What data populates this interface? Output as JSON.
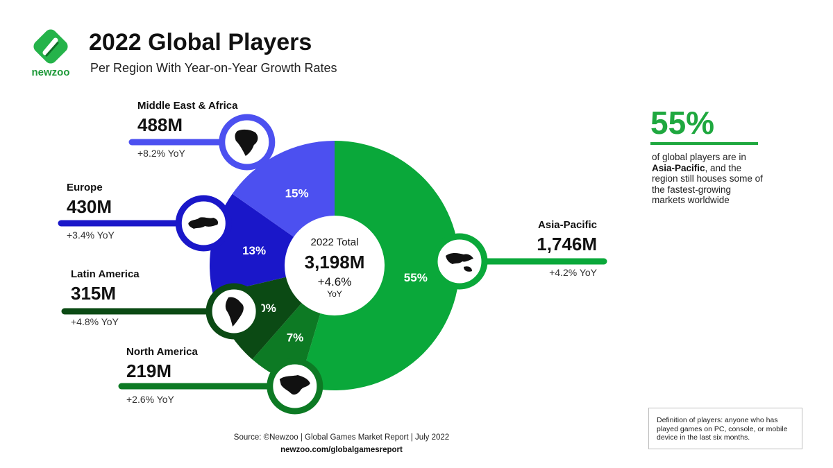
{
  "brand": {
    "name": "newzoo"
  },
  "header": {
    "title": "2022 Global Players",
    "subtitle": "Per Region With Year-on-Year Growth Rates"
  },
  "center": {
    "label": "2022 Total",
    "total": "3,198M",
    "growth": "+4.6%",
    "growth_unit": "YoY"
  },
  "chart_data": {
    "type": "pie",
    "title": "2022 Global Players",
    "subtitle": "Per Region With Year-on-Year Growth Rates",
    "total_label": "2022 Total",
    "total": 3198,
    "total_display": "3,198M",
    "total_yoy": "+4.6% YoY",
    "unit": "M",
    "slices": [
      {
        "name": "Asia-Pacific",
        "value": 1746,
        "value_label": "1,746M",
        "share": 55,
        "share_label": "55%",
        "yoy": "+4.2% YoY",
        "color": "#0aa83a",
        "icon": "asia-pacific-map-icon"
      },
      {
        "name": "North America",
        "value": 219,
        "value_label": "219M",
        "share": 7,
        "share_label": "7%",
        "yoy": "+2.6% YoY",
        "color": "#0d7a24",
        "icon": "north-america-map-icon"
      },
      {
        "name": "Latin America",
        "value": 315,
        "value_label": "315M",
        "share": 10,
        "share_label": "10%",
        "yoy": "+4.8% YoY",
        "color": "#0b4a14",
        "icon": "latin-america-map-icon"
      },
      {
        "name": "Europe",
        "value": 430,
        "value_label": "430M",
        "share": 13,
        "share_label": "13%",
        "yoy": "+3.4% YoY",
        "color": "#1a17c9",
        "icon": "europe-map-icon"
      },
      {
        "name": "Middle East & Africa",
        "value": 488,
        "value_label": "488M",
        "share": 15,
        "share_label": "15%",
        "yoy": "+8.2% YoY",
        "color": "#4c50f0",
        "icon": "africa-map-icon"
      }
    ]
  },
  "callout": {
    "percent": "55%",
    "text_before": "of global players are in",
    "highlight": "Asia-Pacific",
    "text_after": ", and the region still houses some of the fastest-growing markets worldwide"
  },
  "definition": "Definition of players: anyone who has played games on PC, console, or mobile device in the last six months.",
  "footer": {
    "source": "Source: ©Newzoo | Global Games Market Report | July 2022",
    "site": "newzoo.com/globalgamesreport"
  }
}
